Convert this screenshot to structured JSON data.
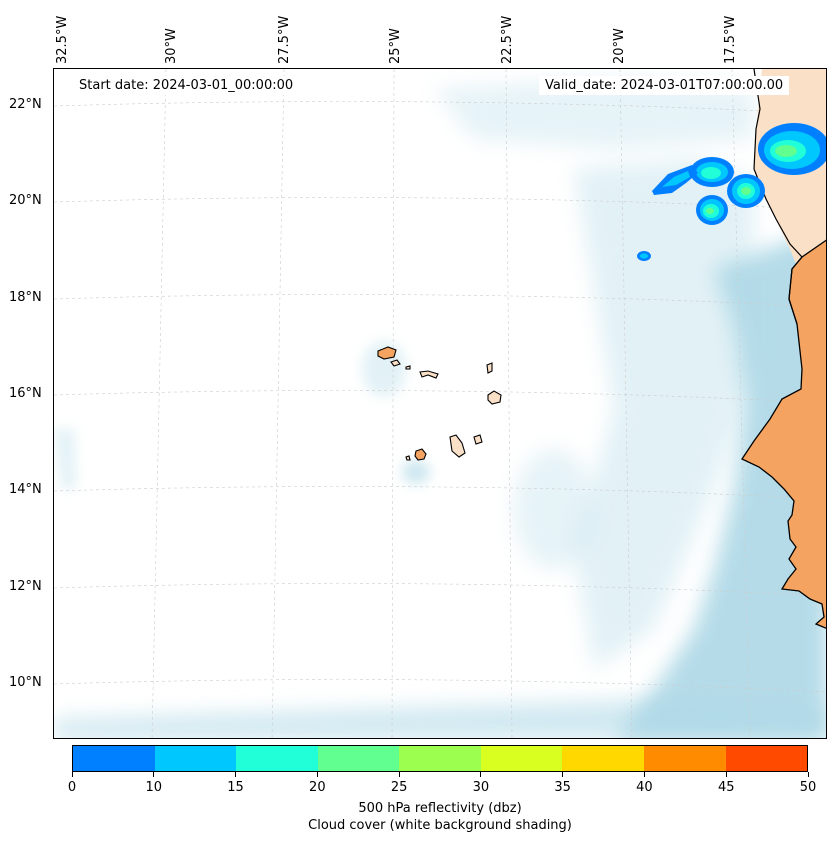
{
  "map": {
    "start_date": "Start date: 2024-03-01_00:00:00",
    "valid_date": "Valid_date: 2024-03-01T07:00:00.00",
    "lon_labels": [
      "32.5°W",
      "30°W",
      "27.5°W",
      "25°W",
      "22.5°W",
      "20°W",
      "17.5°W"
    ],
    "lat_labels": [
      "22°N",
      "20°N",
      "18°N",
      "16°N",
      "14°N",
      "12°N",
      "10°N"
    ],
    "colors": {
      "land": "#f4a460",
      "land_north": "#fbe0c8",
      "cloud": "#add8e6",
      "coast": "#000000",
      "grid": "#cccccc"
    }
  },
  "colorbar": {
    "ticks": [
      "0",
      "10",
      "15",
      "20",
      "25",
      "30",
      "35",
      "40",
      "45",
      "50"
    ],
    "colors": [
      "#0080ff",
      "#00c8ff",
      "#20ffd8",
      "#60ff90",
      "#9cff50",
      "#d8ff20",
      "#ffd800",
      "#ff8c00",
      "#ff4a00"
    ],
    "label_line1": "500 hPa reflectivity (dbz)",
    "label_line2": "Cloud cover (white background shading)"
  }
}
